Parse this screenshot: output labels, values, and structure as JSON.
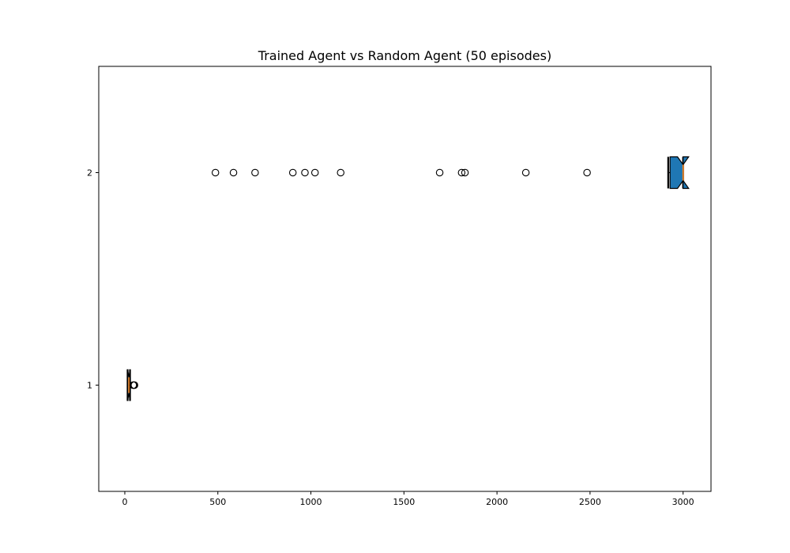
{
  "chart_data": {
    "type": "box",
    "orientation": "horizontal",
    "title": "Trained Agent vs Random Agent (50 episodes)",
    "xlabel": "",
    "ylabel": "",
    "xlim": [
      -140,
      3150
    ],
    "ylim": [
      0.5,
      2.5
    ],
    "x_ticks": [
      0,
      500,
      1000,
      1500,
      2000,
      2500,
      3000
    ],
    "y_ticks": [
      1,
      2
    ],
    "grid": false,
    "colors": {
      "box_fill": "#1f77b4",
      "median": "#ff7f0e",
      "edge": "#000000"
    },
    "boxes": [
      {
        "position": 1,
        "whisker_low": 15,
        "q1": 15,
        "median": 22,
        "q3": 28,
        "whisker_high": 28,
        "notch_low": 15,
        "notch_high": 28,
        "outliers": [
          45,
          48,
          52
        ]
      },
      {
        "position": 2,
        "whisker_low": 2920,
        "q1": 2930,
        "median": 3000,
        "q3": 3000,
        "whisker_high": 3000,
        "notch_low": 2970,
        "notch_high": 3030,
        "outliers": [
          487,
          584,
          700,
          903,
          968,
          1022,
          1160,
          1692,
          1810,
          1828,
          2155,
          2484
        ]
      }
    ]
  }
}
